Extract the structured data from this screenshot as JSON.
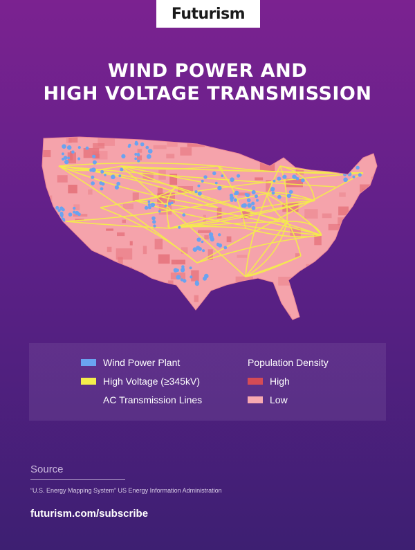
{
  "brand": {
    "logo_text": "Futurism"
  },
  "title": {
    "line1": "WIND POWER AND",
    "line2": "HIGH VOLTAGE TRANSMISSION"
  },
  "legend": {
    "wind": {
      "label": "Wind Power Plant",
      "color": "#6aa3f0"
    },
    "voltage": {
      "label_line1": "High Voltage (≥345kV)",
      "label_line2": "AC Transmission Lines",
      "color": "#f4ee4b"
    },
    "density": {
      "heading": "Population Density",
      "high": {
        "label": "High",
        "color": "#d54b55"
      },
      "low": {
        "label": "Low",
        "color": "#f7a9b1"
      }
    }
  },
  "source": {
    "label": "Source",
    "text": "“U.S. Energy Mapping System” US Energy Information Administration"
  },
  "footer": {
    "subscribe": "futurism.com/subscribe"
  },
  "map": {
    "wind_plant_color": "#6aa3f0",
    "transmission_color": "#f4ee4b",
    "high_density_color": "#d54b55",
    "low_density_color": "#f7a9b1",
    "region": "Contiguous United States"
  }
}
